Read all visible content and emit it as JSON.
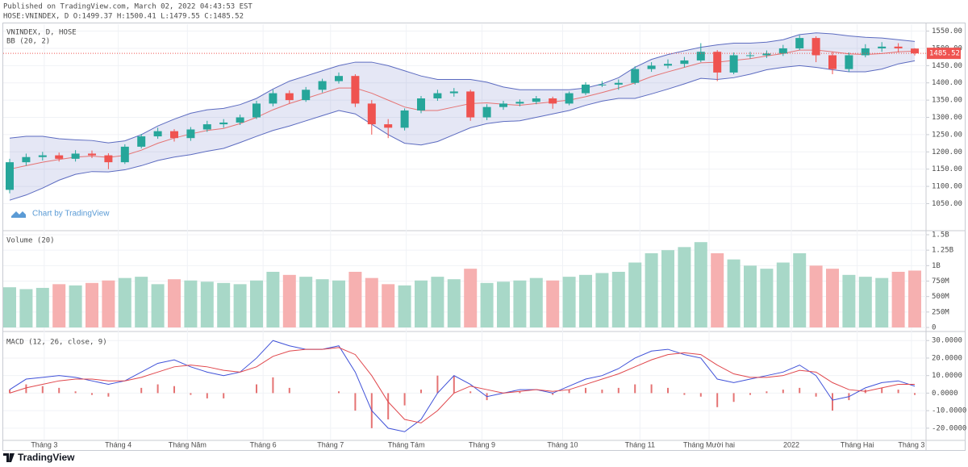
{
  "header": {
    "published": "Published on TradingView.com, March 02, 2022 04:43:53 EST",
    "symbol_line": "HOSE:VNINDEX, D O:1499.37 H:1500.41 L:1479.55 C:1485.52"
  },
  "watermark": "Chart by TradingView",
  "footer": "TradingView",
  "chart_data": [
    {
      "type": "candlestick",
      "title": "VNINDEX, D, HOSE",
      "indicator": "BB (20, 2)",
      "up_color": "#26a69a",
      "down_color": "#ef5350",
      "open": [
        1090,
        1170,
        1185,
        1190,
        1180,
        1195,
        1190,
        1170,
        1215,
        1245,
        1260,
        1240,
        1265,
        1280,
        1285,
        1300,
        1340,
        1370,
        1350,
        1380,
        1405,
        1420,
        1340,
        1280,
        1270,
        1320,
        1355,
        1370,
        1375,
        1300,
        1330,
        1340,
        1345,
        1355,
        1340,
        1370,
        1395,
        1395,
        1400,
        1440,
        1450,
        1455,
        1465,
        1490,
        1430,
        1480,
        1480,
        1485,
        1500,
        1530,
        1480,
        1440,
        1480,
        1500,
        1505,
        1499.37
      ],
      "high": [
        1180,
        1195,
        1200,
        1198,
        1205,
        1204,
        1196,
        1222,
        1252,
        1270,
        1266,
        1272,
        1290,
        1295,
        1308,
        1348,
        1380,
        1378,
        1388,
        1412,
        1430,
        1425,
        1350,
        1295,
        1326,
        1362,
        1380,
        1385,
        1380,
        1338,
        1348,
        1352,
        1362,
        1360,
        1375,
        1402,
        1405,
        1410,
        1448,
        1460,
        1468,
        1475,
        1515,
        1495,
        1488,
        1490,
        1494,
        1510,
        1538,
        1535,
        1490,
        1488,
        1512,
        1518,
        1515,
        1500.41
      ],
      "low": [
        1080,
        1160,
        1175,
        1172,
        1172,
        1182,
        1150,
        1165,
        1210,
        1238,
        1230,
        1232,
        1258,
        1270,
        1278,
        1295,
        1332,
        1340,
        1345,
        1372,
        1398,
        1330,
        1250,
        1240,
        1262,
        1312,
        1348,
        1360,
        1290,
        1292,
        1322,
        1332,
        1338,
        1325,
        1335,
        1365,
        1388,
        1380,
        1395,
        1432,
        1442,
        1445,
        1460,
        1405,
        1425,
        1470,
        1472,
        1478,
        1495,
        1460,
        1425,
        1432,
        1474,
        1490,
        1488,
        1479.55
      ],
      "close": [
        1170,
        1185,
        1190,
        1180,
        1195,
        1190,
        1170,
        1215,
        1245,
        1260,
        1240,
        1265,
        1280,
        1285,
        1300,
        1340,
        1370,
        1350,
        1380,
        1405,
        1420,
        1340,
        1280,
        1270,
        1320,
        1355,
        1370,
        1375,
        1300,
        1330,
        1340,
        1345,
        1355,
        1340,
        1370,
        1395,
        1395,
        1400,
        1440,
        1450,
        1455,
        1465,
        1490,
        1430,
        1480,
        1480,
        1485,
        1500,
        1530,
        1480,
        1440,
        1480,
        1500,
        1505,
        1500,
        1485.52
      ],
      "bb": {
        "line_color": "#5c6bc0",
        "middle_color": "#e57373",
        "fill": "rgba(92,107,192,0.16)",
        "upper": [
          1240,
          1245,
          1245,
          1238,
          1235,
          1233,
          1226,
          1232,
          1250,
          1275,
          1295,
          1312,
          1322,
          1326,
          1337,
          1355,
          1382,
          1405,
          1420,
          1435,
          1450,
          1460,
          1460,
          1450,
          1435,
          1420,
          1410,
          1410,
          1410,
          1402,
          1388,
          1380,
          1380,
          1380,
          1380,
          1385,
          1397,
          1415,
          1445,
          1468,
          1482,
          1493,
          1503,
          1510,
          1515,
          1515,
          1518,
          1525,
          1540,
          1545,
          1542,
          1536,
          1532,
          1530,
          1525,
          1520
        ],
        "middle": [
          1150,
          1160,
          1170,
          1178,
          1185,
          1188,
          1184,
          1190,
          1205,
          1225,
          1240,
          1252,
          1262,
          1268,
          1282,
          1300,
          1322,
          1340,
          1355,
          1370,
          1385,
          1385,
          1370,
          1350,
          1330,
          1320,
          1320,
          1330,
          1340,
          1342,
          1338,
          1335,
          1340,
          1345,
          1350,
          1360,
          1372,
          1385,
          1400,
          1418,
          1432,
          1445,
          1458,
          1460,
          1465,
          1470,
          1478,
          1485,
          1495,
          1495,
          1490,
          1484,
          1482,
          1485,
          1490,
          1492
        ],
        "lower": [
          1060,
          1075,
          1095,
          1118,
          1135,
          1143,
          1142,
          1148,
          1160,
          1175,
          1185,
          1192,
          1202,
          1210,
          1227,
          1245,
          1262,
          1275,
          1290,
          1305,
          1320,
          1310,
          1280,
          1250,
          1225,
          1220,
          1230,
          1250,
          1270,
          1282,
          1288,
          1290,
          1300,
          1310,
          1320,
          1335,
          1347,
          1355,
          1355,
          1368,
          1382,
          1397,
          1413,
          1410,
          1415,
          1425,
          1438,
          1445,
          1450,
          1445,
          1438,
          1432,
          1432,
          1440,
          1455,
          1464
        ]
      },
      "ylim": [
        974,
        1570
      ],
      "yticks": [
        {
          "value": 1050,
          "label": "1050.00"
        },
        {
          "value": 1100,
          "label": "1100.00"
        },
        {
          "value": 1150,
          "label": "1150.00"
        },
        {
          "value": 1200,
          "label": "1200.00"
        },
        {
          "value": 1250,
          "label": "1250.00"
        },
        {
          "value": 1300,
          "label": "1300.00"
        },
        {
          "value": 1350,
          "label": "1350.00"
        },
        {
          "value": 1400,
          "label": "1400.00"
        },
        {
          "value": 1450,
          "label": "1450.00"
        },
        {
          "value": 1500,
          "label": "1500.00"
        },
        {
          "value": 1550,
          "label": "1550.00"
        }
      ]
    },
    {
      "type": "bar",
      "title": "Volume (20)",
      "up_color": "#a8d8c8",
      "down_color": "#f6b0b0",
      "values": [
        650,
        620,
        640,
        700,
        680,
        720,
        760,
        800,
        820,
        700,
        780,
        760,
        740,
        720,
        700,
        760,
        900,
        850,
        820,
        780,
        760,
        900,
        800,
        700,
        680,
        760,
        820,
        780,
        950,
        720,
        740,
        760,
        800,
        760,
        820,
        850,
        880,
        900,
        1050,
        1200,
        1250,
        1300,
        1380,
        1200,
        1100,
        1000,
        950,
        1050,
        1200,
        1000,
        950,
        850,
        820,
        800,
        900,
        920
      ],
      "ylim": [
        -52,
        1552
      ],
      "yticks": [
        0,
        {
          "value": 250,
          "label": "250M"
        },
        {
          "value": 500,
          "label": "500M"
        },
        {
          "value": 750,
          "label": "750M"
        },
        {
          "value": 1000,
          "label": "1B"
        },
        {
          "value": 1250,
          "label": "1.25B"
        },
        {
          "value": 1500,
          "label": "1.5B"
        }
      ]
    },
    {
      "type": "macd",
      "title": "MACD (12, 26, close, 9)",
      "macd_color": "#3f51d8",
      "signal_color": "#e0474c",
      "hist_color": "#e57373",
      "macd": [
        2,
        8,
        9,
        10,
        9,
        7,
        5,
        7,
        12,
        17,
        19,
        15,
        12,
        10,
        12,
        20,
        30,
        27,
        25,
        25,
        27,
        12,
        -10,
        -20,
        -22,
        -15,
        0,
        10,
        5,
        -2,
        0,
        2,
        2,
        0,
        4,
        8,
        10,
        14,
        20,
        24,
        25,
        22,
        20,
        8,
        6,
        8,
        10,
        12,
        16,
        10,
        -4,
        -2,
        3,
        6,
        7,
        4
      ],
      "signal": [
        0,
        3,
        5,
        7,
        8,
        8,
        7,
        7,
        9,
        12,
        15,
        16,
        15,
        13,
        12,
        15,
        21,
        24,
        25,
        25,
        26,
        22,
        10,
        -5,
        -15,
        -17,
        -10,
        0,
        4,
        2,
        0,
        1,
        2,
        1,
        2,
        5,
        8,
        11,
        15,
        19,
        22,
        23,
        22,
        16,
        11,
        9,
        9,
        10,
        13,
        12,
        6,
        2,
        1,
        3,
        5,
        5
      ],
      "histogram": [
        2,
        5,
        4,
        3,
        1,
        -1,
        -2,
        0,
        3,
        5,
        4,
        -1,
        -3,
        -3,
        0,
        5,
        9,
        3,
        0,
        0,
        1,
        -10,
        -20,
        -15,
        -7,
        2,
        10,
        10,
        1,
        -4,
        0,
        1,
        0,
        -1,
        2,
        3,
        2,
        3,
        5,
        5,
        3,
        -1,
        -2,
        -8,
        -5,
        -1,
        1,
        2,
        3,
        -2,
        -10,
        -4,
        2,
        3,
        2,
        -1
      ],
      "ylim": [
        -26.5,
        34.7
      ],
      "yticks": [
        {
          "value": -20,
          "label": "-20.0000"
        },
        {
          "value": -10,
          "label": "-10.0000"
        },
        {
          "value": 0,
          "label": "0.0000"
        },
        {
          "value": 10,
          "label": "10.0000"
        },
        {
          "value": 20,
          "label": "20.0000"
        },
        {
          "value": 30,
          "label": "30.0000"
        }
      ],
      "xticks": [
        {
          "value": 2.1,
          "label": "Tháng 3"
        },
        {
          "value": 6.6,
          "label": "Tháng 4"
        },
        {
          "value": 10.8,
          "label": "Tháng Năm"
        },
        {
          "value": 15.4,
          "label": "Tháng 6"
        },
        {
          "value": 19.5,
          "label": "Tháng 7"
        },
        {
          "value": 24.1,
          "label": "Tháng Tám"
        },
        {
          "value": 28.7,
          "label": "Tháng 9"
        },
        {
          "value": 33.6,
          "label": "Tháng 10"
        },
        {
          "value": 38.3,
          "label": "Tháng 11"
        },
        {
          "value": 42.5,
          "label": "Tháng Mười hai"
        },
        {
          "value": 47.5,
          "label": "2022"
        },
        {
          "value": 51.5,
          "label": "Tháng Hai"
        },
        {
          "value": 54.8,
          "label": "Tháng 3"
        }
      ]
    }
  ]
}
